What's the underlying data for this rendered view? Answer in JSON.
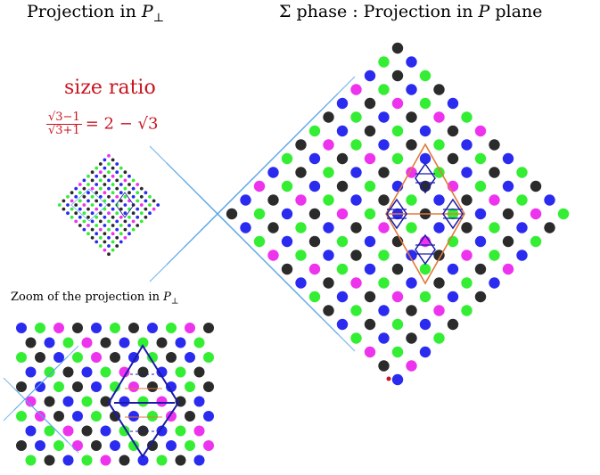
{
  "titles": {
    "left": "Projection in ",
    "left_math": "P",
    "left_sub": "⊥",
    "right_prefix": "Σ phase : Projection in ",
    "right_math": "P",
    "right_suffix": " plane"
  },
  "ratio": {
    "label": "size ratio",
    "frac_num": "√3−1",
    "frac_den": "√3+1",
    "rhs": "= 2 − √3"
  },
  "zoom": {
    "label": "Zoom of the projection in ",
    "math": "P",
    "sub": "⊥"
  },
  "colors": {
    "black": "#2b2b2b",
    "blue": "#2b2bf0",
    "green": "#33ee33",
    "magenta": "#ee33ee",
    "red": "#c8141e",
    "grid": "#5aa6e6",
    "orange": "#e07a3a",
    "navy": "#1a1aa8"
  }
}
